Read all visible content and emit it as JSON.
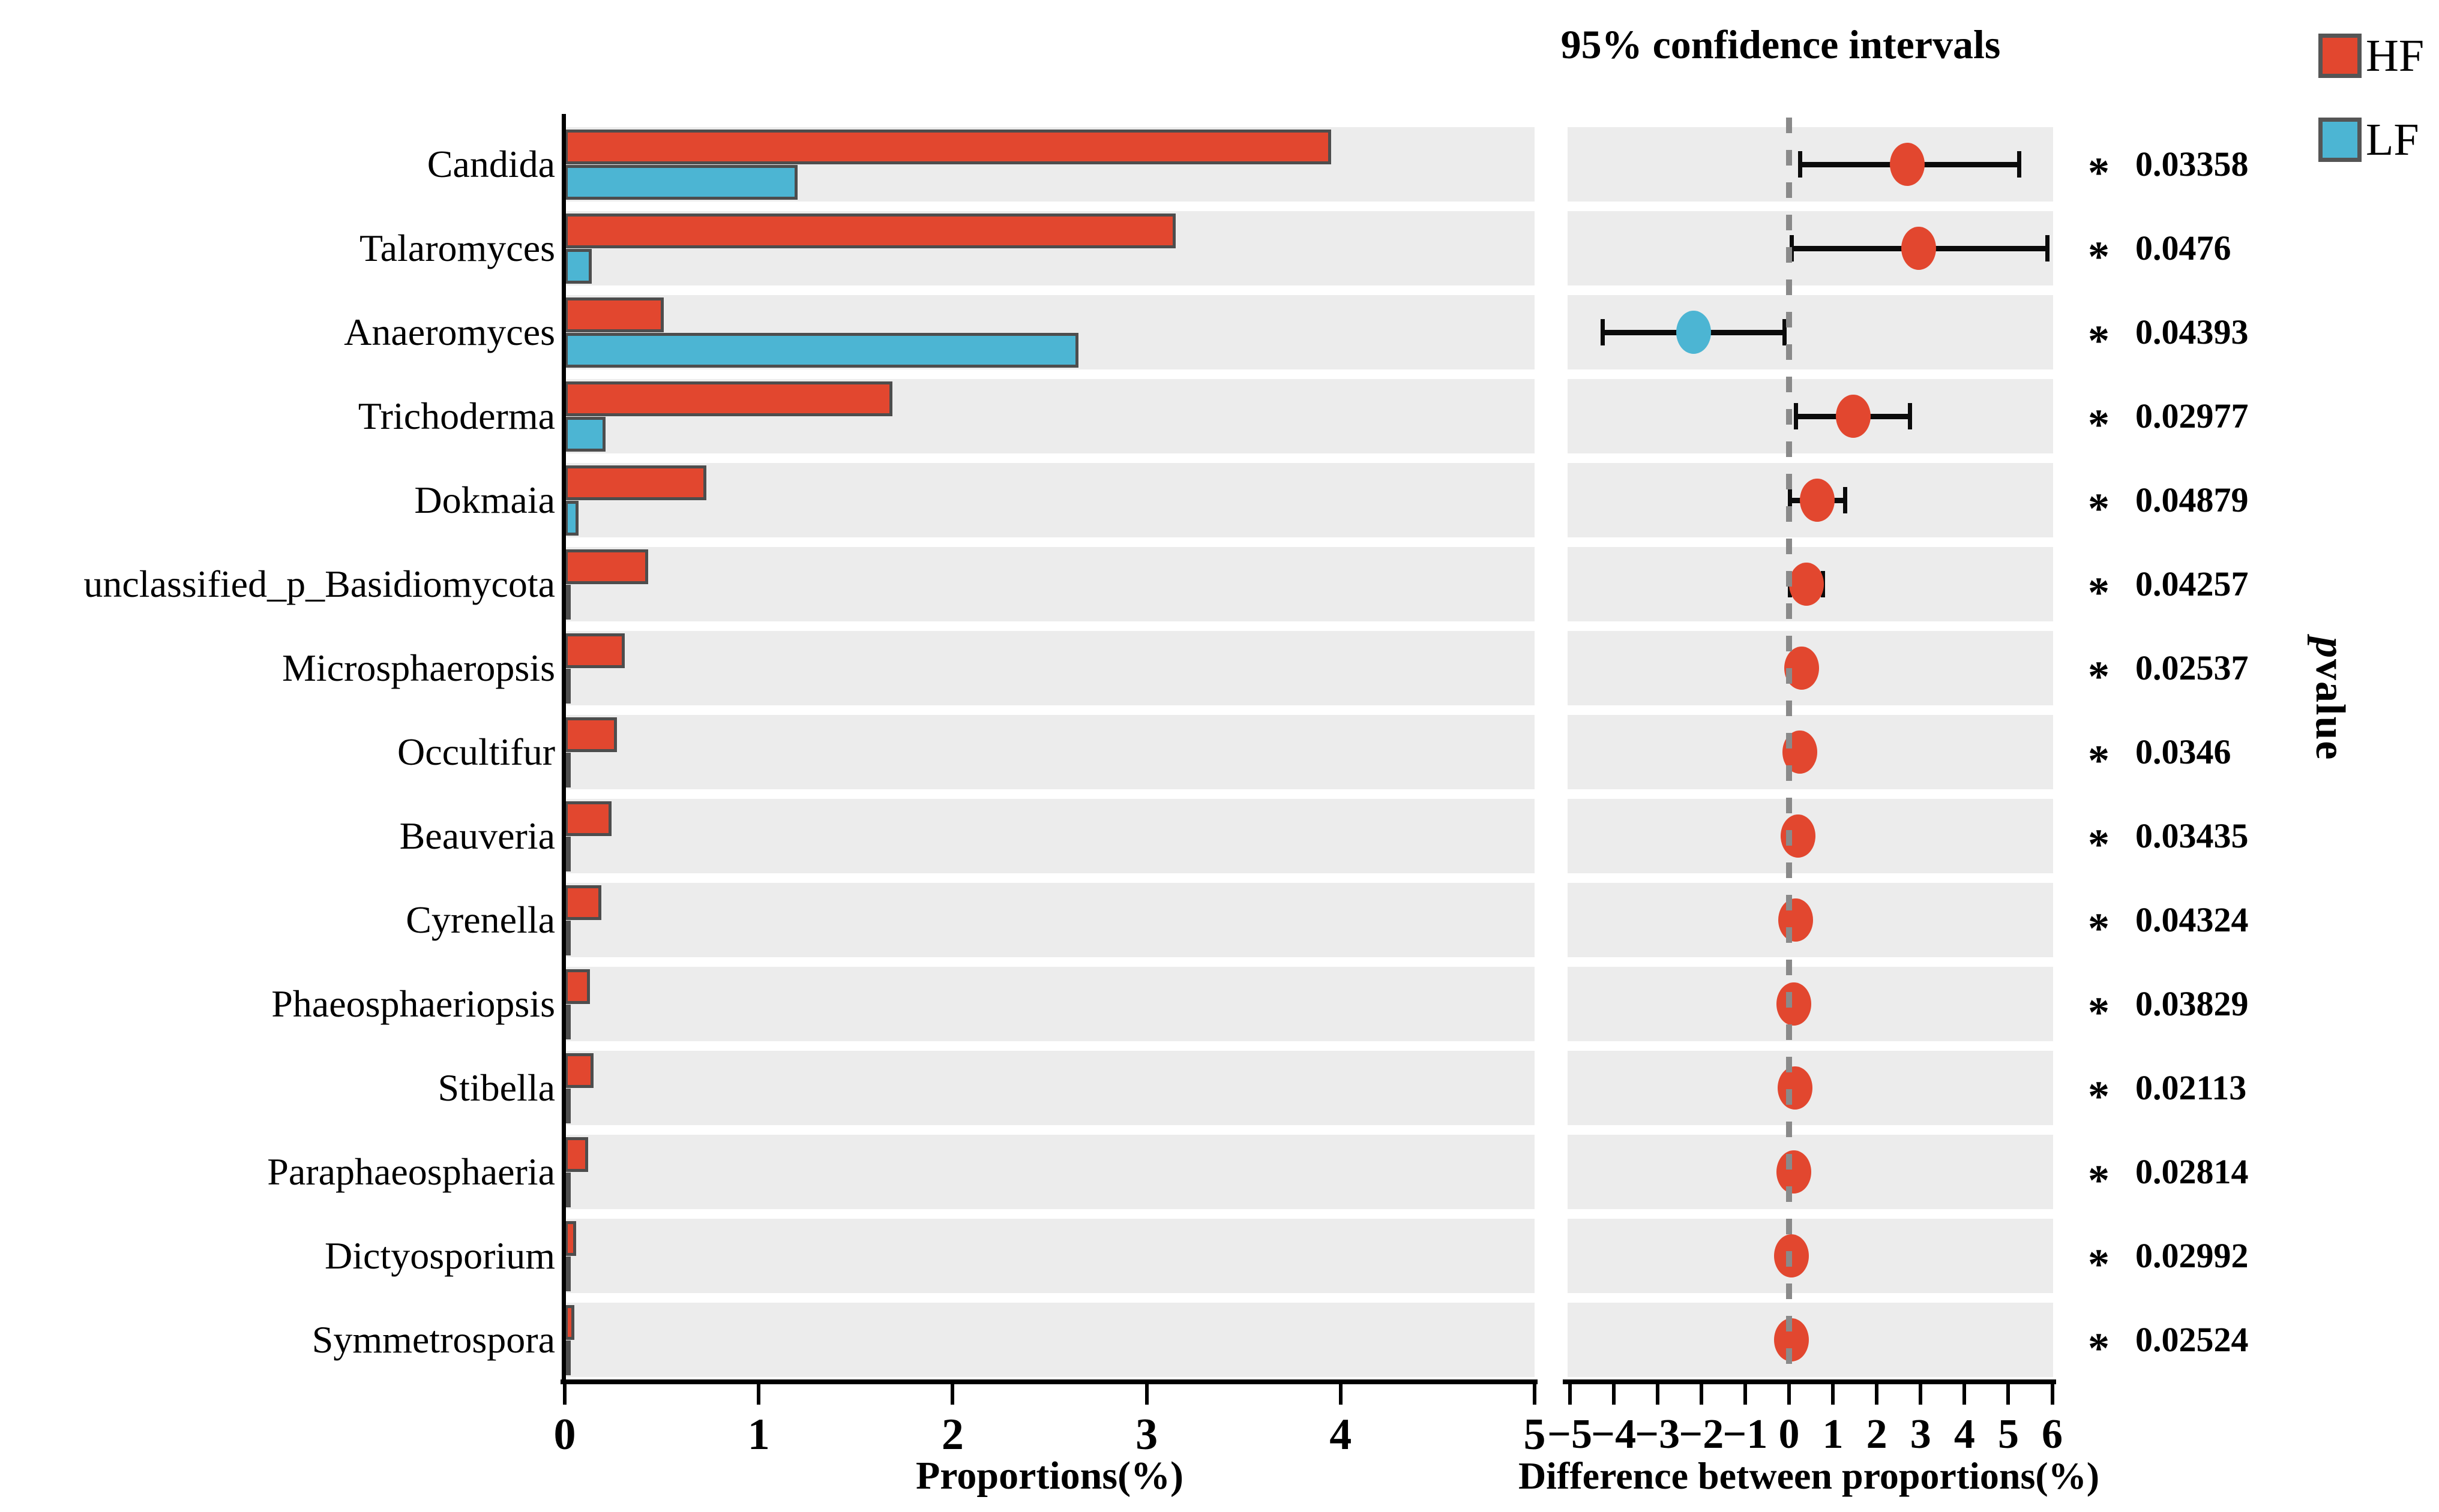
{
  "figure": {
    "right_panel_title": "95% confidence intervals",
    "significance_marker": "*",
    "pvalue_axis_label_italic": "p",
    "pvalue_axis_label_rest": "value"
  },
  "legend": {
    "items": [
      {
        "label": "HF",
        "color": "#E2472F"
      },
      {
        "label": "LF",
        "color": "#4CB5D3"
      }
    ]
  },
  "colors": {
    "hf": "#E2472F",
    "lf": "#4CB5D3",
    "bar_border": "#4D4D4D",
    "band": "#ECECEC",
    "error_bar": "#0B0B0B",
    "zero_line": "#8A8A8A"
  },
  "chart_data": {
    "type": "bar",
    "subtype": "extended-error-bar (STAMP-style two-group comparison)",
    "categories": [
      "Candida",
      "Talaromyces",
      "Anaeromyces",
      "Trichoderma",
      "Dokmaia",
      "unclassified_p_Basidiomycota",
      "Microsphaeropsis",
      "Occultifur",
      "Beauveria",
      "Cyrenella",
      "Phaeosphaeriopsis",
      "Stibella",
      "Paraphaeosphaeria",
      "Dictyosporium",
      "Symmetrospora"
    ],
    "left_panel": {
      "xlabel": "Proportions(%)",
      "xlim": [
        0,
        5
      ],
      "xticks": [
        0,
        1,
        2,
        3,
        4,
        5
      ],
      "xtick_labels": [
        "0",
        "1",
        "2",
        "3",
        "4",
        "5"
      ],
      "series": [
        {
          "name": "HF",
          "color": "#E2472F",
          "values": [
            3.95,
            3.15,
            0.51,
            1.69,
            0.73,
            0.43,
            0.31,
            0.27,
            0.24,
            0.19,
            0.13,
            0.15,
            0.12,
            0.06,
            0.05
          ]
        },
        {
          "name": "LF",
          "color": "#4CB5D3",
          "values": [
            1.2,
            0.14,
            2.65,
            0.21,
            0.07,
            0.02,
            0.015,
            0.015,
            0.015,
            0.01,
            0.01,
            0.01,
            0.01,
            0.008,
            0.008
          ]
        }
      ]
    },
    "right_panel": {
      "title": "95% confidence intervals",
      "xlabel": "Difference between proportions(%)",
      "xlim": [
        -5,
        6
      ],
      "xticks": [
        -5,
        -4,
        -3,
        -2,
        -1,
        0,
        1,
        2,
        3,
        4,
        5,
        6
      ],
      "xtick_labels": [
        "−5",
        "−4",
        "−3",
        "−2",
        "−1",
        "0",
        "1",
        "2",
        "3",
        "4",
        "5",
        "6"
      ],
      "zero_line": 0,
      "points": [
        {
          "diff": 2.7,
          "lo": 0.25,
          "hi": 5.25,
          "enriched": "HF"
        },
        {
          "diff": 2.95,
          "lo": 0.05,
          "hi": 5.9,
          "enriched": "HF"
        },
        {
          "diff": -2.17,
          "lo": -4.25,
          "hi": -0.1,
          "enriched": "LF"
        },
        {
          "diff": 1.47,
          "lo": 0.15,
          "hi": 2.77,
          "enriched": "HF"
        },
        {
          "diff": 0.64,
          "lo": 0.02,
          "hi": 1.28,
          "enriched": "HF"
        },
        {
          "diff": 0.4,
          "lo": 0.02,
          "hi": 0.78,
          "enriched": "HF"
        },
        {
          "diff": 0.29,
          "lo": 0.04,
          "hi": 0.54,
          "enriched": "HF"
        },
        {
          "diff": 0.24,
          "lo": 0.02,
          "hi": 0.46,
          "enriched": "HF"
        },
        {
          "diff": 0.2,
          "lo": 0.02,
          "hi": 0.38,
          "enriched": "HF"
        },
        {
          "diff": 0.15,
          "lo": 0.01,
          "hi": 0.29,
          "enriched": "HF"
        },
        {
          "diff": 0.11,
          "lo": 0.01,
          "hi": 0.21,
          "enriched": "HF"
        },
        {
          "diff": 0.13,
          "lo": 0.02,
          "hi": 0.24,
          "enriched": "HF"
        },
        {
          "diff": 0.11,
          "lo": 0.01,
          "hi": 0.21,
          "enriched": "HF"
        },
        {
          "diff": 0.06,
          "lo": 0.0,
          "hi": 0.12,
          "enriched": "HF"
        },
        {
          "diff": 0.05,
          "lo": 0.0,
          "hi": 0.1,
          "enriched": "HF"
        }
      ]
    },
    "pvalues": [
      "0.03358",
      "0.0476",
      "0.04393",
      "0.02977",
      "0.04879",
      "0.04257",
      "0.02537",
      "0.0346",
      "0.03435",
      "0.04324",
      "0.03829",
      "0.02113",
      "0.02814",
      "0.02992",
      "0.02524"
    ],
    "significance_markers": [
      "*",
      "*",
      "*",
      "*",
      "*",
      "*",
      "*",
      "*",
      "*",
      "*",
      "*",
      "*",
      "*",
      "*",
      "*"
    ],
    "legend_entries": [
      "HF",
      "LF"
    ],
    "legend_position": "top-right",
    "grid": false
  }
}
